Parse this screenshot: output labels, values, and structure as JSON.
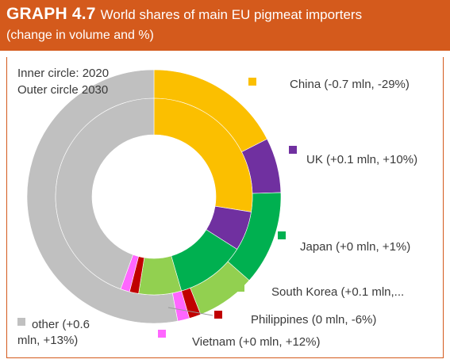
{
  "header": {
    "graph_number": "GRAPH 4.7",
    "title": "World shares of main EU pigmeat importers",
    "subtitle": "(change in volume and %)"
  },
  "notes": {
    "inner": "Inner circle: 2020",
    "outer": "Outer circle 2030"
  },
  "chart_data": {
    "type": "pie",
    "subtype": "double donut",
    "title": "World shares of main EU pigmeat importers",
    "subtitle": "(change in volume and %)",
    "rings": [
      "2020 (inner)",
      "2030 (outer)"
    ],
    "categories": [
      "China",
      "UK",
      "Japan",
      "South Korea",
      "Philippines",
      "Vietnam",
      "other"
    ],
    "legend_labels": [
      [
        "China (-0.7 mln, -29%)"
      ],
      [
        "UK (+0.1 mln, +10%)"
      ],
      [
        "Japan (+0 mln, +1%)"
      ],
      [
        "South Korea (+0.1 mln,..."
      ],
      [
        "Philippines (0 mln, -6%)"
      ],
      [
        "Vietnam (+0 mln, +12%)"
      ],
      [
        "other (+0.6",
        "mln, +13%)"
      ]
    ],
    "colors": [
      "#fbbf00",
      "#7030a0",
      "#00b050",
      "#92d050",
      "#c00000",
      "#ff66ff",
      "#c0c0c0"
    ],
    "series": [
      {
        "ring": "inner",
        "values": [
          27.5,
          6.5,
          11.5,
          7.0,
          1.5,
          1.5,
          44.5
        ]
      },
      {
        "ring": "outer",
        "values": [
          17.5,
          7.0,
          12.0,
          7.5,
          1.5,
          1.5,
          53.0
        ]
      }
    ],
    "legend_position": "right"
  }
}
